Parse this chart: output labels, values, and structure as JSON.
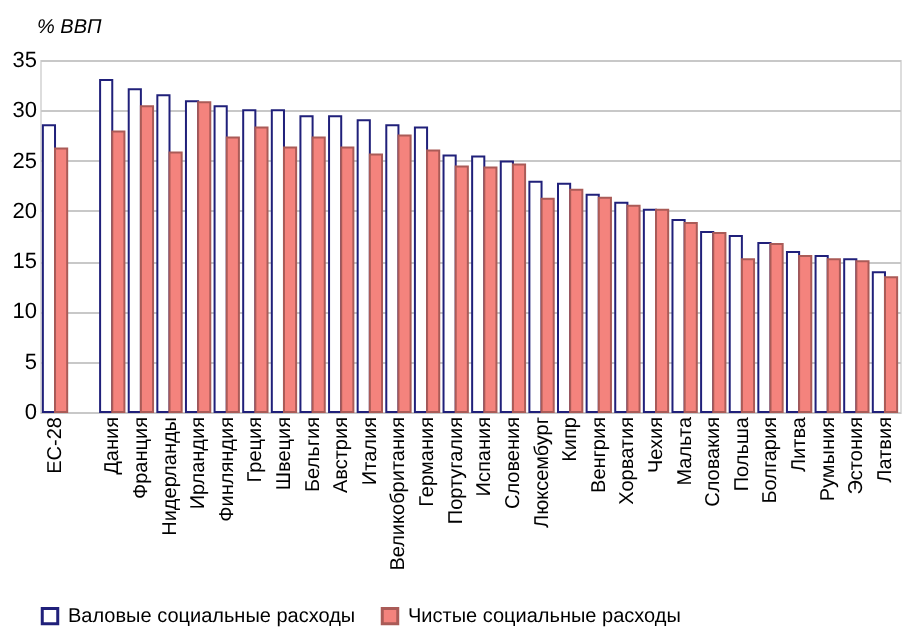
{
  "chart_data": {
    "type": "bar",
    "ylabel": "% ВВП",
    "categories": [
      "ЕС-28",
      null,
      "Дания",
      "Франция",
      "Нидерланды",
      "Ирландия",
      "Финляндия",
      "Греция",
      "Швеция",
      "Бельгия",
      "Австрия",
      "Италия",
      "Великобритания",
      "Германия",
      "Португалия",
      "Испания",
      "Словения",
      "Люксембург",
      "Кипр",
      "Венгрия",
      "Хорватия",
      "Чехия",
      "Мальта",
      "Словакия",
      "Польша",
      "Болгария",
      "Литва",
      "Румыния",
      "Эстония",
      "Латвия"
    ],
    "series": [
      {
        "name": "Валовые социальные расходы",
        "color": "#20207a",
        "values": [
          28.5,
          null,
          33.0,
          32.1,
          31.5,
          30.9,
          30.4,
          30.0,
          30.0,
          29.4,
          29.4,
          29.0,
          28.5,
          28.3,
          25.5,
          25.4,
          24.9,
          22.9,
          22.7,
          21.6,
          20.8,
          20.1,
          19.1,
          17.9,
          17.5,
          16.8,
          15.9,
          15.5,
          15.2,
          13.9
        ]
      },
      {
        "name": "Чистые социальные расходы",
        "color": "#f4837d",
        "values": [
          26.2,
          null,
          27.9,
          30.4,
          25.8,
          30.8,
          27.3,
          28.3,
          26.3,
          27.3,
          26.3,
          25.6,
          27.5,
          26.0,
          24.4,
          24.3,
          24.6,
          21.2,
          22.1,
          21.3,
          20.5,
          20.1,
          18.8,
          17.8,
          15.2,
          16.7,
          15.5,
          15.2,
          15.0,
          13.4
        ]
      }
    ],
    "ylim": [
      0,
      35
    ],
    "yticks": [
      0,
      5,
      10,
      15,
      20,
      25,
      30,
      35
    ],
    "grid": "y",
    "legend": "bottom"
  }
}
